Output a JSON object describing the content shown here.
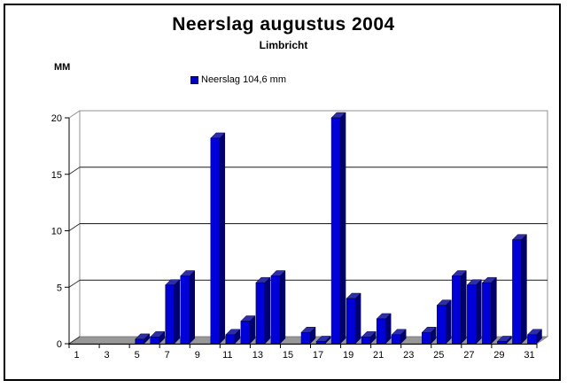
{
  "frame": {
    "background": "#FFFFFF",
    "border_color": "#000000"
  },
  "chart_data": {
    "type": "bar",
    "title": "Neerslag augustus 2004",
    "subtitle": "Limbricht",
    "y_axis_unit": "MM",
    "legend": {
      "label": "Neerslag 104,6 mm",
      "marker_color": "#0000C8"
    },
    "categories": [
      1,
      2,
      3,
      4,
      5,
      6,
      7,
      8,
      9,
      10,
      11,
      12,
      13,
      14,
      15,
      16,
      17,
      18,
      19,
      20,
      21,
      22,
      23,
      24,
      25,
      26,
      27,
      28,
      29,
      30,
      31
    ],
    "values": [
      0,
      0,
      0,
      0,
      0.4,
      0.6,
      5.2,
      6.0,
      0,
      18.2,
      0.8,
      2.0,
      5.4,
      6.0,
      0,
      1.0,
      0.2,
      20.0,
      4.0,
      0.6,
      2.2,
      0.8,
      0,
      1.0,
      3.4,
      6.0,
      5.2,
      5.4,
      0.2,
      9.2,
      0.8
    ],
    "total_mm": 104.6,
    "xtick_labels": [
      "1",
      "3",
      "5",
      "7",
      "9",
      "11",
      "13",
      "15",
      "17",
      "19",
      "21",
      "23",
      "25",
      "27",
      "29",
      "31"
    ],
    "ylim": [
      0,
      20
    ],
    "yticks": [
      0,
      5,
      10,
      15,
      20
    ],
    "grid": "horizontal",
    "style_3d": true,
    "legend_position": "above-plot-left",
    "colors": {
      "bar_front": "#0000D8",
      "bar_side": "#000070",
      "bar_top": "#2E2EA8",
      "bar_outline": "#000040",
      "floor": "#989898",
      "floor_edge": "#6B6B6B",
      "wall_border": "#909090",
      "gridline": "#1A1A1A",
      "axis": "#000000",
      "text": "#000000"
    }
  }
}
